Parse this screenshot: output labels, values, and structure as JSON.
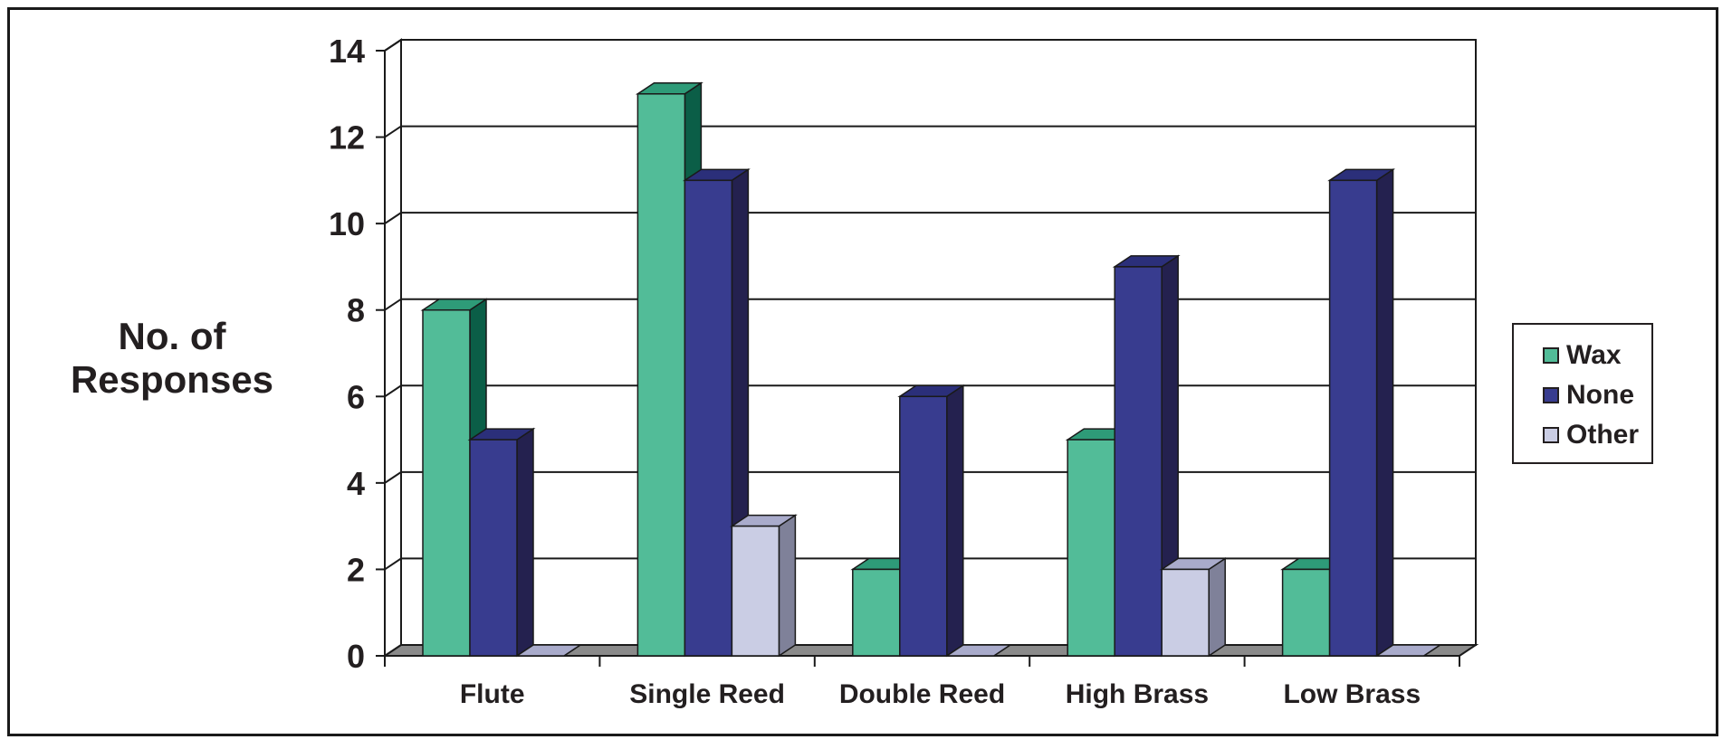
{
  "chart_data": {
    "type": "bar",
    "title": "",
    "xlabel": "",
    "ylabel_lines": [
      "No. of",
      "Responses"
    ],
    "categories": [
      "Flute",
      "Single Reed",
      "Double Reed",
      "High Brass",
      "Low Brass"
    ],
    "series": [
      {
        "name": "Wax",
        "values": [
          8,
          13,
          2,
          5,
          2
        ],
        "color": "#52bc98",
        "side": "#0b5e47",
        "top": "#2e9b78"
      },
      {
        "name": "None",
        "values": [
          5,
          11,
          6,
          9,
          11
        ],
        "color": "#383c8f",
        "side": "#24214f",
        "top": "#2b2f7a"
      },
      {
        "name": "Other",
        "values": [
          0,
          3,
          0,
          2,
          0
        ],
        "color": "#cacde4",
        "side": "#7f8199",
        "top": "#a9abcb"
      }
    ],
    "ylim": [
      0,
      14
    ],
    "yticks": [
      0,
      2,
      4,
      6,
      8,
      10,
      12,
      14
    ],
    "grid": true,
    "legend_position": "right",
    "style": "3d-bar"
  }
}
